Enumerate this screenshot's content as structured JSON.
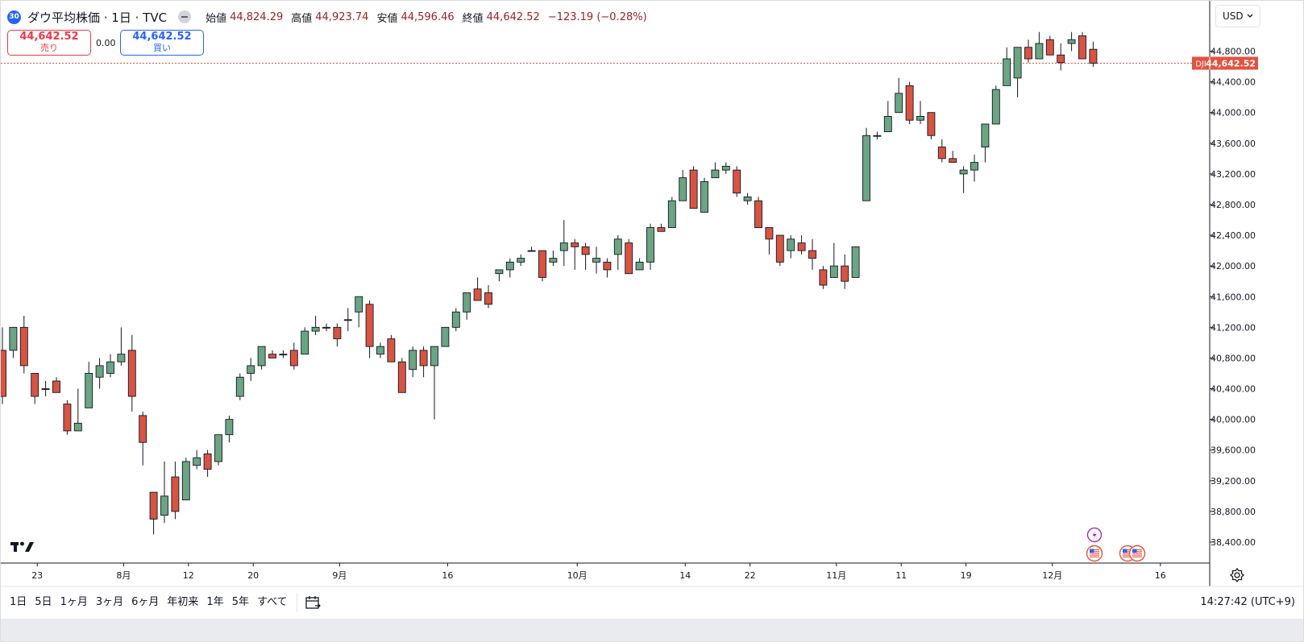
{
  "header": {
    "symbol_badge": "30",
    "symbol_title": "ダウ平均株価 · 1日 · TVC",
    "ohlc": [
      {
        "label": "始値",
        "value": "44,824.29"
      },
      {
        "label": "高値",
        "value": "44,923.74"
      },
      {
        "label": "安値",
        "value": "44,596.46"
      },
      {
        "label": "終値",
        "value": "44,642.52"
      }
    ],
    "change": "−123.19 (−0.28%)"
  },
  "trade": {
    "sell_price": "44,642.52",
    "sell_label": "売り",
    "spread": "0.00",
    "buy_price": "44,642.52",
    "buy_label": "買い"
  },
  "currency": "USD",
  "price_tag": {
    "symbol": "DJI",
    "value": "44,642.52"
  },
  "bottom": {
    "ranges": [
      "1日",
      "5日",
      "1ヶ月",
      "3ヶ月",
      "6ヶ月",
      "年初来",
      "1年",
      "5年",
      "すべて"
    ],
    "clock": "14:27:42 (UTC+9)"
  },
  "colors": {
    "up": "#6ba583",
    "down": "#d75442",
    "last_price": "#e3523f"
  },
  "icons": [
    "tradingview-logo",
    "calendar-range-icon",
    "gear-icon",
    "dividend-flag-icon",
    "us-flag-event-icon",
    "chevron-down-icon"
  ],
  "chart_data": {
    "type": "candlestick",
    "last_price": 44642.52,
    "ylim": [
      38200,
      45250
    ],
    "y_ticks": [
      "38,400.00",
      "38,800.00",
      "39,200.00",
      "39,600.00",
      "40,000.00",
      "40,400.00",
      "40,800.00",
      "41,200.00",
      "41,600.00",
      "42,000.00",
      "42,400.00",
      "42,800.00",
      "43,200.00",
      "43,600.00",
      "44,000.00",
      "44,400.00",
      "44,800.00"
    ],
    "x_ticks": [
      "23",
      "8月",
      "12",
      "20",
      "9月",
      "16",
      "10月",
      "14",
      "22",
      "11月",
      "11",
      "19",
      "12月",
      "16"
    ],
    "candles": [
      [
        40900,
        41200,
        40200,
        40300
      ],
      [
        40900,
        41200,
        40800,
        41200
      ],
      [
        41200,
        41350,
        40600,
        40700
      ],
      [
        40600,
        40600,
        40200,
        40300
      ],
      [
        40400,
        40500,
        40300,
        40400
      ],
      [
        40500,
        40550,
        40350,
        40350
      ],
      [
        40200,
        40250,
        39800,
        39850
      ],
      [
        39850,
        40400,
        39850,
        39950
      ],
      [
        40150,
        40750,
        40150,
        40600
      ],
      [
        40550,
        40800,
        40400,
        40700
      ],
      [
        40600,
        40850,
        40550,
        40750
      ],
      [
        40750,
        41200,
        40700,
        40850
      ],
      [
        40900,
        41100,
        40100,
        40300
      ],
      [
        40050,
        40100,
        39400,
        39700
      ],
      [
        39050,
        39050,
        38500,
        38700
      ],
      [
        38750,
        39450,
        38650,
        39000
      ],
      [
        39250,
        39450,
        38700,
        38800
      ],
      [
        38950,
        39500,
        38950,
        39450
      ],
      [
        39400,
        39600,
        39350,
        39500
      ],
      [
        39550,
        39600,
        39250,
        39350
      ],
      [
        39450,
        39800,
        39400,
        39800
      ],
      [
        39800,
        40050,
        39700,
        40000
      ],
      [
        40300,
        40600,
        40250,
        40550
      ],
      [
        40600,
        40800,
        40500,
        40700
      ],
      [
        40700,
        40950,
        40650,
        40950
      ],
      [
        40850,
        40900,
        40800,
        40800
      ],
      [
        40850,
        40900,
        40800,
        40850
      ],
      [
        40900,
        41000,
        40650,
        40700
      ],
      [
        40850,
        41200,
        40850,
        41150
      ],
      [
        41150,
        41350,
        41100,
        41200
      ],
      [
        41200,
        41250,
        41150,
        41200
      ],
      [
        41200,
        41250,
        40950,
        41050
      ],
      [
        41300,
        41450,
        41150,
        41300
      ],
      [
        41400,
        41600,
        41200,
        41600
      ],
      [
        41500,
        41550,
        40800,
        40950
      ],
      [
        40850,
        41000,
        40800,
        40950
      ],
      [
        41050,
        41100,
        40750,
        40750
      ],
      [
        40750,
        40800,
        40350,
        40350
      ],
      [
        40650,
        40950,
        40550,
        40900
      ],
      [
        40900,
        40950,
        40550,
        40700
      ],
      [
        40700,
        40950,
        40000,
        40950
      ],
      [
        40950,
        41200,
        40950,
        41200
      ],
      [
        41200,
        41450,
        41150,
        41400
      ],
      [
        41400,
        41650,
        41300,
        41650
      ],
      [
        41700,
        41850,
        41550,
        41550
      ],
      [
        41650,
        41750,
        41450,
        41500
      ],
      [
        41900,
        41950,
        41800,
        41950
      ],
      [
        41950,
        42100,
        41850,
        42050
      ],
      [
        42050,
        42150,
        42000,
        42100
      ],
      [
        42200,
        42250,
        42200,
        42200
      ],
      [
        42200,
        42200,
        41800,
        41850
      ],
      [
        42050,
        42200,
        42000,
        42100
      ],
      [
        42200,
        42600,
        42000,
        42300
      ],
      [
        42300,
        42350,
        41950,
        42250
      ],
      [
        42250,
        42300,
        41950,
        42150
      ],
      [
        42050,
        42250,
        41900,
        42100
      ],
      [
        42050,
        42100,
        41850,
        41950
      ],
      [
        42150,
        42400,
        41950,
        42350
      ],
      [
        42300,
        42350,
        41900,
        41900
      ],
      [
        41950,
        42100,
        41950,
        42050
      ],
      [
        42050,
        42550,
        41950,
        42500
      ],
      [
        42500,
        42550,
        42450,
        42450
      ],
      [
        42500,
        42900,
        42500,
        42850
      ],
      [
        42850,
        43250,
        42850,
        43150
      ],
      [
        43250,
        43300,
        42800,
        42750
      ],
      [
        42700,
        43150,
        42700,
        43100
      ],
      [
        43150,
        43350,
        43150,
        43250
      ],
      [
        43250,
        43350,
        43200,
        43300
      ],
      [
        43250,
        43300,
        42900,
        42950
      ],
      [
        42850,
        42950,
        42800,
        42900
      ],
      [
        42850,
        42900,
        42500,
        42500
      ],
      [
        42500,
        42500,
        42150,
        42350
      ],
      [
        42400,
        42400,
        42000,
        42050
      ],
      [
        42200,
        42400,
        42100,
        42350
      ],
      [
        42300,
        42400,
        42150,
        42200
      ],
      [
        42200,
        42350,
        41950,
        42100
      ],
      [
        41950,
        42000,
        41700,
        41750
      ],
      [
        41850,
        42300,
        41850,
        42000
      ],
      [
        42000,
        42150,
        41700,
        41800
      ],
      [
        41850,
        42200,
        41850,
        42250
      ],
      [
        42850,
        43800,
        42850,
        43700
      ],
      [
        43700,
        43750,
        43650,
        43700
      ],
      [
        43750,
        44150,
        43750,
        43950
      ],
      [
        44000,
        44450,
        44000,
        44250
      ],
      [
        44350,
        44400,
        43850,
        43900
      ],
      [
        43900,
        44150,
        43850,
        43950
      ],
      [
        44000,
        44000,
        43650,
        43700
      ],
      [
        43550,
        43650,
        43350,
        43400
      ],
      [
        43400,
        43500,
        43350,
        43350
      ],
      [
        43200,
        43300,
        42950,
        43250
      ],
      [
        43250,
        43450,
        43100,
        43350
      ],
      [
        43550,
        43850,
        43350,
        43850
      ],
      [
        43850,
        44350,
        43850,
        44300
      ],
      [
        44350,
        44850,
        44350,
        44700
      ],
      [
        44450,
        44850,
        44200,
        44850
      ],
      [
        44850,
        44950,
        44650,
        44700
      ],
      [
        44700,
        45050,
        44700,
        44900
      ],
      [
        44950,
        45000,
        44750,
        44750
      ],
      [
        44750,
        44900,
        44550,
        44650
      ],
      [
        44900,
        45050,
        44800,
        44950
      ],
      [
        45000,
        45050,
        44700,
        44700
      ],
      [
        44824.29,
        44923.74,
        44596.46,
        44642.52
      ]
    ]
  }
}
